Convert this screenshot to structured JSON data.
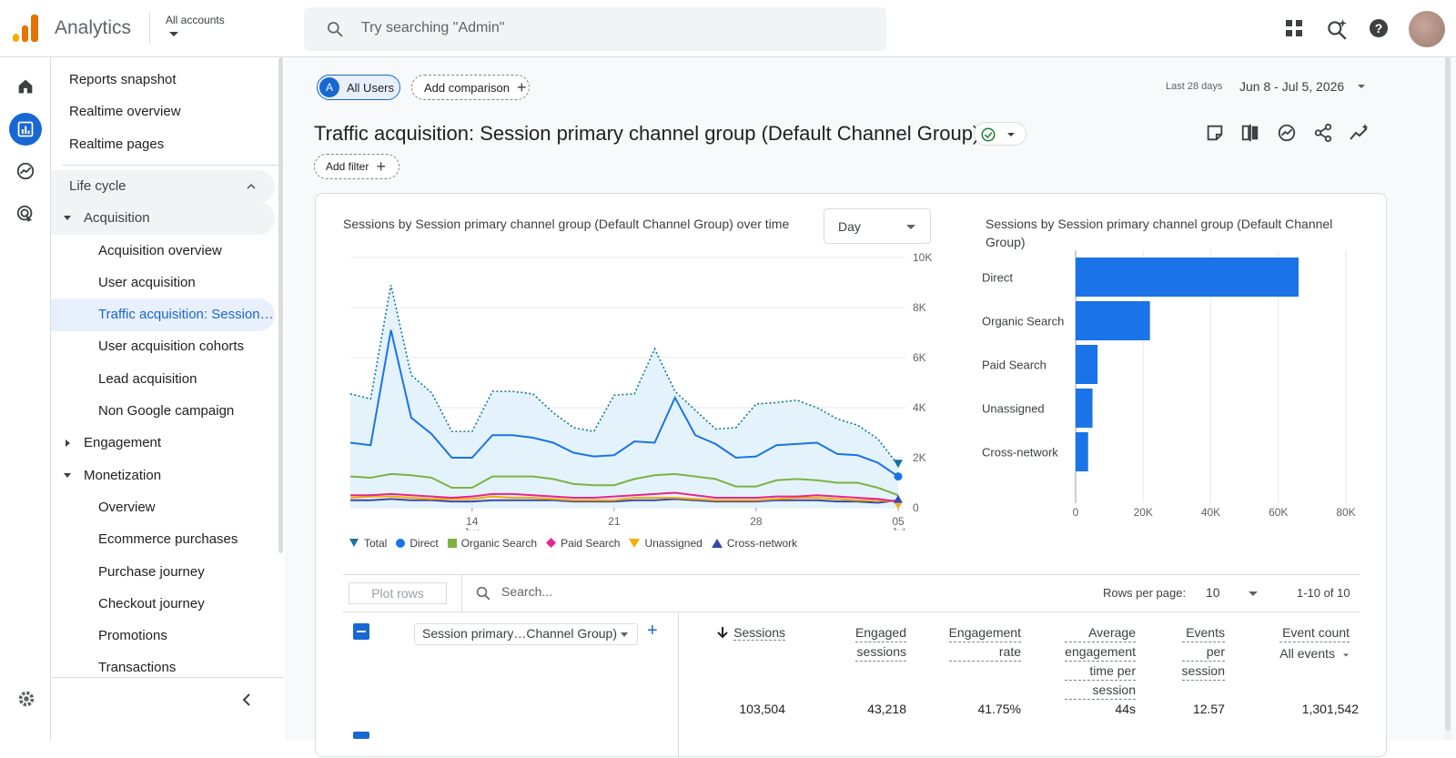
{
  "header": {
    "app_title": "Analytics",
    "account_label": "All accounts",
    "search_placeholder": "Try searching \"Admin\""
  },
  "nav": {
    "items": [
      {
        "label": "Reports snapshot"
      },
      {
        "label": "Realtime overview"
      },
      {
        "label": "Realtime pages"
      },
      {
        "label": "Life cycle"
      },
      {
        "label": "Acquisition"
      },
      {
        "label": "Acquisition overview"
      },
      {
        "label": "User acquisition"
      },
      {
        "label": "Traffic acquisition: Session primary channel group (Default Channel Group)"
      },
      {
        "label": "User acquisition cohorts"
      },
      {
        "label": "Lead acquisition"
      },
      {
        "label": "Non Google campaign"
      },
      {
        "label": "Engagement"
      },
      {
        "label": "Monetization"
      },
      {
        "label": "Overview"
      },
      {
        "label": "Ecommerce purchases"
      },
      {
        "label": "Purchase journey"
      },
      {
        "label": "Checkout journey"
      },
      {
        "label": "Promotions"
      },
      {
        "label": "Transactions"
      }
    ]
  },
  "toolbar": {
    "segment_initial": "A",
    "segment_label": "All Users",
    "add_comparison": "Add comparison",
    "date_preset": "Last 28 days",
    "date_range": "Jun 8 - Jul 5, 2026",
    "add_filter": "Add filter"
  },
  "report": {
    "title": "Traffic acquisition: Session primary channel group (Default Channel Group)"
  },
  "line_chart": {
    "title": "Sessions by Session primary channel group (Default Channel Group) over time",
    "granularity": "Day",
    "y_ticks": [
      "10K",
      "8K",
      "6K",
      "4K",
      "2K",
      "0"
    ],
    "x_ticks": [
      {
        "day": "14",
        "month": "Jun"
      },
      {
        "day": "21",
        "month": ""
      },
      {
        "day": "28",
        "month": ""
      },
      {
        "day": "05",
        "month": "Jul"
      }
    ],
    "legend": [
      {
        "name": "Total",
        "color": "#12739e"
      },
      {
        "name": "Direct",
        "color": "#1a73e8"
      },
      {
        "name": "Organic Search",
        "color": "#7cb342"
      },
      {
        "name": "Paid Search",
        "color": "#e52592"
      },
      {
        "name": "Unassigned",
        "color": "#f9ab00"
      },
      {
        "name": "Cross-network",
        "color": "#3949ab"
      }
    ]
  },
  "bar_chart": {
    "title": "Sessions by Session primary channel group (Default Channel Group)",
    "x_ticks": [
      "0",
      "20K",
      "40K",
      "60K",
      "80K"
    ]
  },
  "chart_data": [
    {
      "type": "area",
      "x": [
        "Jun 8",
        "Jun 9",
        "Jun 10",
        "Jun 11",
        "Jun 12",
        "Jun 13",
        "Jun 14",
        "Jun 15",
        "Jun 16",
        "Jun 17",
        "Jun 18",
        "Jun 19",
        "Jun 20",
        "Jun 21",
        "Jun 22",
        "Jun 23",
        "Jun 24",
        "Jun 25",
        "Jun 26",
        "Jun 27",
        "Jun 28",
        "Jun 29",
        "Jun 30",
        "Jul 1",
        "Jul 2",
        "Jul 3",
        "Jul 4",
        "Jul 5"
      ],
      "ylim": [
        0,
        10000
      ],
      "series": [
        {
          "name": "Total",
          "values": [
            4550,
            4350,
            8900,
            5300,
            4600,
            3050,
            3050,
            4650,
            4650,
            4550,
            3800,
            3200,
            3050,
            4500,
            4550,
            6350,
            4650,
            3900,
            3150,
            3200,
            4150,
            4200,
            4300,
            4000,
            3550,
            3300,
            2750,
            1700
          ]
        },
        {
          "name": "Direct",
          "values": [
            2600,
            2500,
            7100,
            3600,
            2950,
            2000,
            2000,
            2900,
            2900,
            2800,
            2600,
            2200,
            2050,
            2100,
            2650,
            2600,
            4400,
            2900,
            2550,
            2000,
            2050,
            2500,
            2550,
            2600,
            2150,
            2100,
            1800,
            1250
          ]
        },
        {
          "name": "Organic Search",
          "values": [
            1250,
            1200,
            1350,
            1300,
            1200,
            800,
            800,
            1250,
            1250,
            1250,
            1150,
            950,
            900,
            900,
            1150,
            1300,
            1350,
            1250,
            1150,
            850,
            850,
            1100,
            1150,
            1100,
            1000,
            1000,
            800,
            500
          ]
        },
        {
          "name": "Paid Search",
          "values": [
            500,
            500,
            550,
            500,
            450,
            400,
            450,
            550,
            550,
            500,
            450,
            400,
            400,
            450,
            500,
            550,
            600,
            500,
            400,
            400,
            400,
            450,
            450,
            500,
            450,
            400,
            350,
            250
          ]
        },
        {
          "name": "Unassigned",
          "values": [
            400,
            450,
            450,
            400,
            350,
            350,
            350,
            450,
            400,
            400,
            350,
            300,
            300,
            300,
            400,
            400,
            400,
            350,
            300,
            300,
            300,
            350,
            400,
            400,
            350,
            300,
            300,
            250
          ]
        },
        {
          "name": "Cross-network",
          "values": [
            300,
            300,
            350,
            300,
            300,
            250,
            250,
            300,
            300,
            300,
            300,
            250,
            250,
            250,
            300,
            300,
            350,
            300,
            250,
            250,
            250,
            300,
            300,
            300,
            250,
            250,
            200,
            300
          ]
        }
      ]
    },
    {
      "type": "bar",
      "orientation": "horizontal",
      "categories": [
        "Direct",
        "Organic Search",
        "Paid Search",
        "Unassigned",
        "Cross-network"
      ],
      "values": [
        66000,
        22000,
        6500,
        5000,
        3700
      ],
      "xlim": [
        0,
        80000
      ]
    }
  ],
  "table": {
    "plot_rows": "Plot rows",
    "search_placeholder": "Search...",
    "rows_per_page_label": "Rows per page:",
    "rows_per_page": "10",
    "pagination": "1-10 of 10",
    "dimension": "Session primary…Channel Group)",
    "columns": [
      {
        "line1": "Sessions",
        "line2": "",
        "line3": "",
        "line4": ""
      },
      {
        "line1": "Engaged",
        "line2": "sessions",
        "line3": "",
        "line4": ""
      },
      {
        "line1": "Engagement",
        "line2": "rate",
        "line3": "",
        "line4": ""
      },
      {
        "line1": "Average",
        "line2": "engagement",
        "line3": "time per",
        "line4": "session"
      },
      {
        "line1": "Events",
        "line2": "per",
        "line3": "session",
        "line4": ""
      },
      {
        "line1": "Event count",
        "line2": "All events",
        "line3": "",
        "line4": ""
      }
    ],
    "totals": [
      "103,504",
      "43,218",
      "41.75%",
      "44s",
      "12.57",
      "1,301,542"
    ]
  }
}
